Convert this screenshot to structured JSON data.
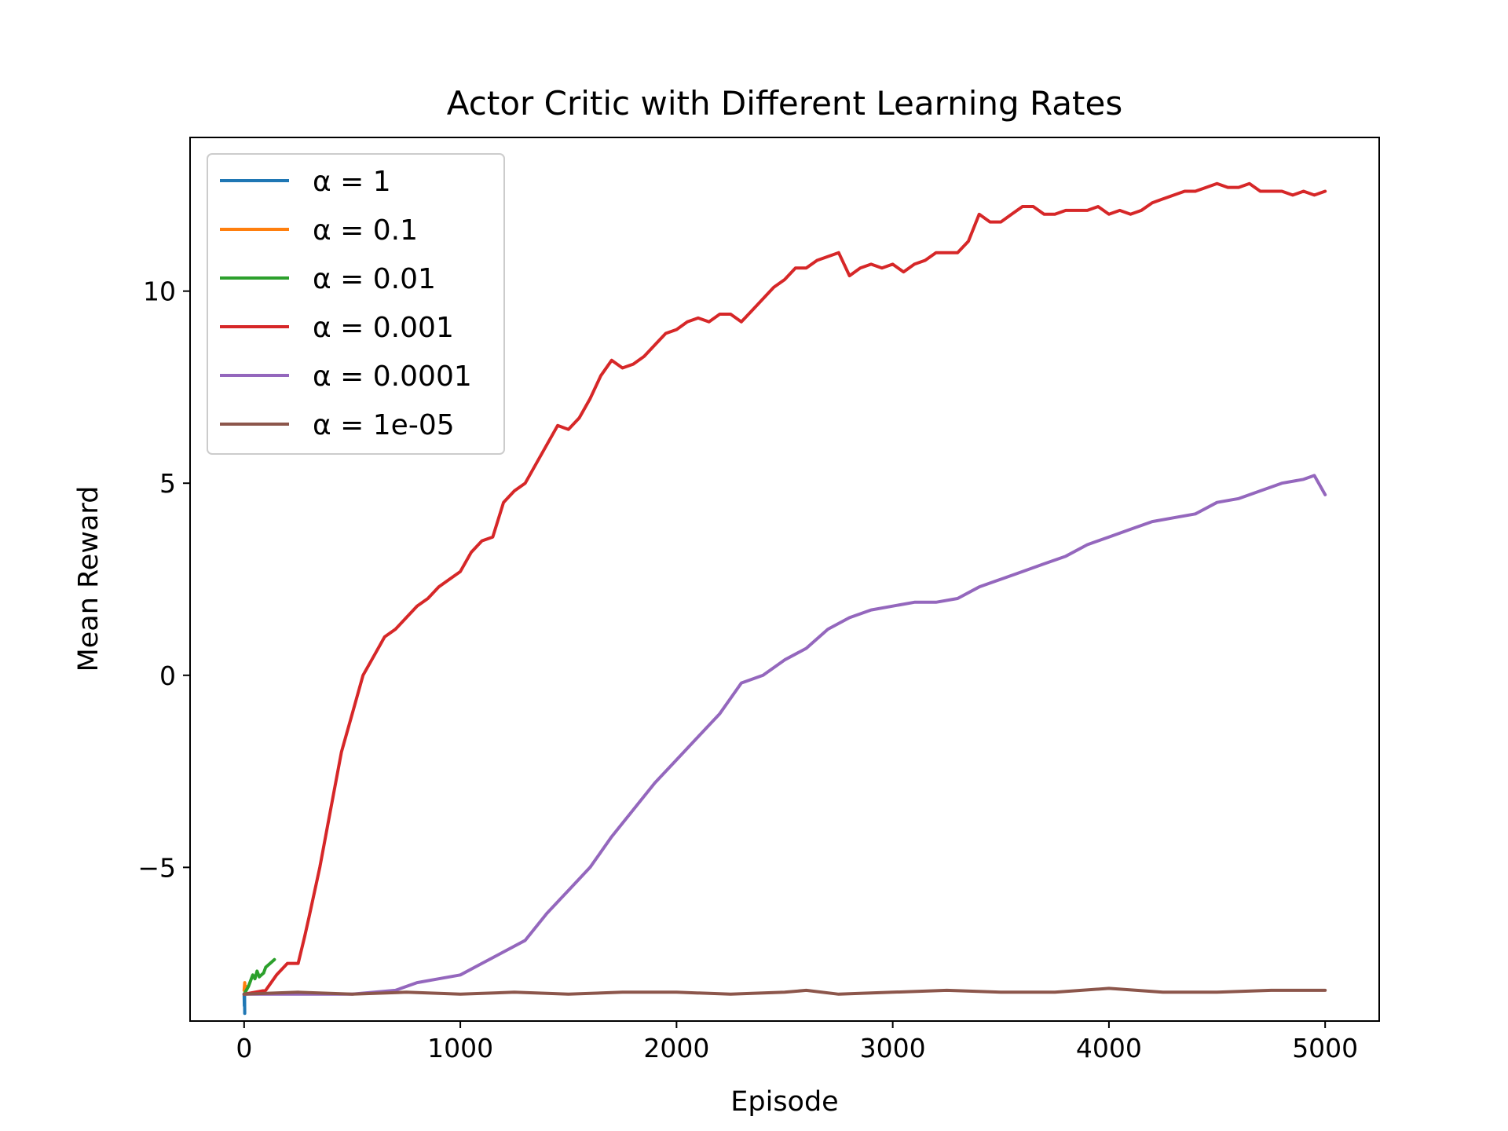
{
  "chart_data": {
    "type": "line",
    "title": "Actor Critic with Different Learning Rates",
    "xlabel": "Episode",
    "ylabel": "Mean Reward",
    "xlim": [
      -250,
      5250
    ],
    "ylim": [
      -9.0,
      14.0
    ],
    "xticks": [
      0,
      1000,
      2000,
      3000,
      4000,
      5000
    ],
    "xtick_labels": [
      "0",
      "1000",
      "2000",
      "3000",
      "4000",
      "5000"
    ],
    "yticks": [
      -5,
      0,
      5,
      10
    ],
    "ytick_labels": [
      "−5",
      "0",
      "5",
      "10"
    ],
    "grid": false,
    "legend_position": "upper left",
    "series": [
      {
        "name": "α = 1",
        "color": "#1f77b4",
        "points": [
          [
            0,
            -8.3
          ],
          [
            1,
            -8.6
          ],
          [
            2,
            -8.3
          ],
          [
            3,
            -8.8
          ]
        ]
      },
      {
        "name": "α = 0.1",
        "color": "#ff7f0e",
        "points": [
          [
            0,
            -8.2
          ],
          [
            3,
            -8.0
          ],
          [
            6,
            -8.3
          ],
          [
            10,
            -8.1
          ]
        ]
      },
      {
        "name": "α = 0.01",
        "color": "#2ca02c",
        "points": [
          [
            0,
            -8.3
          ],
          [
            20,
            -8.1
          ],
          [
            40,
            -7.8
          ],
          [
            50,
            -7.9
          ],
          [
            60,
            -7.7
          ],
          [
            70,
            -7.85
          ],
          [
            80,
            -7.8
          ],
          [
            90,
            -7.75
          ],
          [
            100,
            -7.6
          ],
          [
            120,
            -7.5
          ],
          [
            140,
            -7.4
          ]
        ]
      },
      {
        "name": "α = 0.001",
        "color": "#d62728",
        "points": [
          [
            0,
            -8.3
          ],
          [
            100,
            -8.2
          ],
          [
            150,
            -7.8
          ],
          [
            200,
            -7.5
          ],
          [
            250,
            -7.5
          ],
          [
            280,
            -6.8
          ],
          [
            300,
            -6.3
          ],
          [
            350,
            -5.0
          ],
          [
            400,
            -3.5
          ],
          [
            450,
            -2.0
          ],
          [
            500,
            -1.0
          ],
          [
            550,
            0.0
          ],
          [
            600,
            0.5
          ],
          [
            650,
            1.0
          ],
          [
            700,
            1.2
          ],
          [
            750,
            1.5
          ],
          [
            800,
            1.8
          ],
          [
            850,
            2.0
          ],
          [
            900,
            2.3
          ],
          [
            950,
            2.5
          ],
          [
            1000,
            2.7
          ],
          [
            1050,
            3.2
          ],
          [
            1100,
            3.5
          ],
          [
            1150,
            3.6
          ],
          [
            1200,
            4.5
          ],
          [
            1250,
            4.8
          ],
          [
            1300,
            5.0
          ],
          [
            1350,
            5.5
          ],
          [
            1400,
            6.0
          ],
          [
            1450,
            6.5
          ],
          [
            1500,
            6.4
          ],
          [
            1550,
            6.7
          ],
          [
            1600,
            7.2
          ],
          [
            1650,
            7.8
          ],
          [
            1700,
            8.2
          ],
          [
            1750,
            8.0
          ],
          [
            1800,
            8.1
          ],
          [
            1850,
            8.3
          ],
          [
            1900,
            8.6
          ],
          [
            1950,
            8.9
          ],
          [
            2000,
            9.0
          ],
          [
            2050,
            9.2
          ],
          [
            2100,
            9.3
          ],
          [
            2150,
            9.2
          ],
          [
            2200,
            9.4
          ],
          [
            2250,
            9.4
          ],
          [
            2300,
            9.2
          ],
          [
            2350,
            9.5
          ],
          [
            2400,
            9.8
          ],
          [
            2450,
            10.1
          ],
          [
            2500,
            10.3
          ],
          [
            2550,
            10.6
          ],
          [
            2600,
            10.6
          ],
          [
            2650,
            10.8
          ],
          [
            2700,
            10.9
          ],
          [
            2750,
            11.0
          ],
          [
            2800,
            10.4
          ],
          [
            2850,
            10.6
          ],
          [
            2900,
            10.7
          ],
          [
            2950,
            10.6
          ],
          [
            3000,
            10.7
          ],
          [
            3050,
            10.5
          ],
          [
            3100,
            10.7
          ],
          [
            3150,
            10.8
          ],
          [
            3200,
            11.0
          ],
          [
            3250,
            11.0
          ],
          [
            3300,
            11.0
          ],
          [
            3350,
            11.3
          ],
          [
            3400,
            12.0
          ],
          [
            3450,
            11.8
          ],
          [
            3500,
            11.8
          ],
          [
            3550,
            12.0
          ],
          [
            3600,
            12.2
          ],
          [
            3650,
            12.2
          ],
          [
            3700,
            12.0
          ],
          [
            3750,
            12.0
          ],
          [
            3800,
            12.1
          ],
          [
            3850,
            12.1
          ],
          [
            3900,
            12.1
          ],
          [
            3950,
            12.2
          ],
          [
            4000,
            12.0
          ],
          [
            4050,
            12.1
          ],
          [
            4100,
            12.0
          ],
          [
            4150,
            12.1
          ],
          [
            4200,
            12.3
          ],
          [
            4250,
            12.4
          ],
          [
            4300,
            12.5
          ],
          [
            4350,
            12.6
          ],
          [
            4400,
            12.6
          ],
          [
            4450,
            12.7
          ],
          [
            4500,
            12.8
          ],
          [
            4550,
            12.7
          ],
          [
            4600,
            12.7
          ],
          [
            4650,
            12.8
          ],
          [
            4700,
            12.6
          ],
          [
            4750,
            12.6
          ],
          [
            4800,
            12.6
          ],
          [
            4850,
            12.5
          ],
          [
            4900,
            12.6
          ],
          [
            4950,
            12.5
          ],
          [
            5000,
            12.6
          ]
        ]
      },
      {
        "name": "α = 0.0001",
        "color": "#9467bd",
        "points": [
          [
            0,
            -8.3
          ],
          [
            300,
            -8.3
          ],
          [
            500,
            -8.3
          ],
          [
            700,
            -8.2
          ],
          [
            800,
            -8.0
          ],
          [
            900,
            -7.9
          ],
          [
            1000,
            -7.8
          ],
          [
            1100,
            -7.5
          ],
          [
            1200,
            -7.2
          ],
          [
            1300,
            -6.9
          ],
          [
            1400,
            -6.2
          ],
          [
            1500,
            -5.6
          ],
          [
            1600,
            -5.0
          ],
          [
            1700,
            -4.2
          ],
          [
            1800,
            -3.5
          ],
          [
            1900,
            -2.8
          ],
          [
            2000,
            -2.2
          ],
          [
            2100,
            -1.6
          ],
          [
            2200,
            -1.0
          ],
          [
            2300,
            -0.2
          ],
          [
            2400,
            0.0
          ],
          [
            2500,
            0.4
          ],
          [
            2600,
            0.7
          ],
          [
            2700,
            1.2
          ],
          [
            2800,
            1.5
          ],
          [
            2900,
            1.7
          ],
          [
            3000,
            1.8
          ],
          [
            3100,
            1.9
          ],
          [
            3200,
            1.9
          ],
          [
            3300,
            2.0
          ],
          [
            3400,
            2.3
          ],
          [
            3500,
            2.5
          ],
          [
            3600,
            2.7
          ],
          [
            3700,
            2.9
          ],
          [
            3800,
            3.1
          ],
          [
            3900,
            3.4
          ],
          [
            4000,
            3.6
          ],
          [
            4100,
            3.8
          ],
          [
            4200,
            4.0
          ],
          [
            4300,
            4.1
          ],
          [
            4400,
            4.2
          ],
          [
            4500,
            4.5
          ],
          [
            4600,
            4.6
          ],
          [
            4700,
            4.8
          ],
          [
            4800,
            5.0
          ],
          [
            4900,
            5.1
          ],
          [
            4950,
            5.2
          ],
          [
            5000,
            4.7
          ]
        ]
      },
      {
        "name": "α = 1e-05",
        "color": "#8c564b",
        "points": [
          [
            0,
            -8.3
          ],
          [
            250,
            -8.25
          ],
          [
            500,
            -8.3
          ],
          [
            750,
            -8.25
          ],
          [
            1000,
            -8.3
          ],
          [
            1250,
            -8.25
          ],
          [
            1500,
            -8.3
          ],
          [
            1750,
            -8.25
          ],
          [
            2000,
            -8.25
          ],
          [
            2250,
            -8.3
          ],
          [
            2500,
            -8.25
          ],
          [
            2600,
            -8.2
          ],
          [
            2750,
            -8.3
          ],
          [
            3000,
            -8.25
          ],
          [
            3250,
            -8.2
          ],
          [
            3500,
            -8.25
          ],
          [
            3750,
            -8.25
          ],
          [
            4000,
            -8.15
          ],
          [
            4250,
            -8.25
          ],
          [
            4500,
            -8.25
          ],
          [
            4750,
            -8.2
          ],
          [
            5000,
            -8.2
          ]
        ]
      }
    ]
  }
}
